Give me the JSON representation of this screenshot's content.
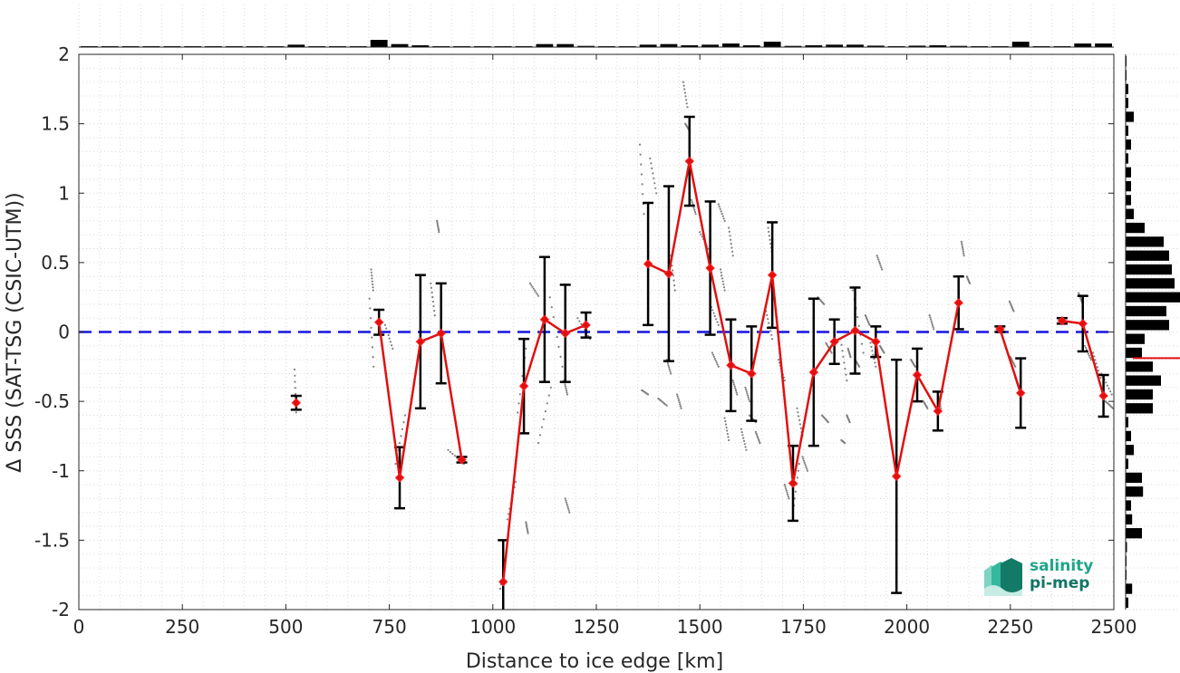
{
  "chart_data": {
    "type": "scatter",
    "xlabel": "Distance to ice edge [km]",
    "ylabel": "Δ SSS (SAT-TSG (CSIC-UTM))",
    "xlim": [
      0,
      2500
    ],
    "ylim": [
      -2,
      2
    ],
    "xticks": [
      "0",
      "250",
      "500",
      "750",
      "1000",
      "1250",
      "1500",
      "1750",
      "2000",
      "2250",
      "2500"
    ],
    "yticks": [
      "2",
      "1.5",
      "1",
      "0.5",
      "0",
      "-0.5",
      "-1",
      "-1.5",
      "-2"
    ],
    "grid": true,
    "reference_line": {
      "y": 0,
      "color": "#1515e0",
      "style": "dashed"
    },
    "series": [
      {
        "kind": "binned-mean-with-errorbars",
        "color": "#e01010",
        "points": [
          {
            "x": 525,
            "y": -0.51,
            "err": 0.05
          },
          {
            "x": 725,
            "y": 0.07,
            "err": 0.09
          },
          {
            "x": 775,
            "y": -1.05,
            "err": 0.22
          },
          {
            "x": 825,
            "y": -0.07,
            "err": 0.48
          },
          {
            "x": 875,
            "y": -0.01,
            "err": 0.36
          },
          {
            "x": 925,
            "y": -0.92,
            "err": 0.02
          },
          {
            "x": 1025,
            "y": -1.8,
            "err": 0.3
          },
          {
            "x": 1075,
            "y": -0.39,
            "err": 0.34
          },
          {
            "x": 1125,
            "y": 0.09,
            "err": 0.45
          },
          {
            "x": 1175,
            "y": -0.01,
            "err": 0.35
          },
          {
            "x": 1225,
            "y": 0.05,
            "err": 0.09
          },
          {
            "x": 1375,
            "y": 0.49,
            "err": 0.44
          },
          {
            "x": 1425,
            "y": 0.42,
            "err": 0.63
          },
          {
            "x": 1475,
            "y": 1.23,
            "err": 0.32
          },
          {
            "x": 1525,
            "y": 0.46,
            "err": 0.48
          },
          {
            "x": 1575,
            "y": -0.24,
            "err": 0.33
          },
          {
            "x": 1625,
            "y": -0.3,
            "err": 0.34
          },
          {
            "x": 1675,
            "y": 0.41,
            "err": 0.38
          },
          {
            "x": 1725,
            "y": -1.09,
            "err": 0.27
          },
          {
            "x": 1775,
            "y": -0.29,
            "err": 0.53
          },
          {
            "x": 1825,
            "y": -0.07,
            "err": 0.16
          },
          {
            "x": 1875,
            "y": 0.01,
            "err": 0.31
          },
          {
            "x": 1925,
            "y": -0.07,
            "err": 0.11
          },
          {
            "x": 1975,
            "y": -1.04,
            "err": 0.84
          },
          {
            "x": 2025,
            "y": -0.31,
            "err": 0.19
          },
          {
            "x": 2075,
            "y": -0.57,
            "err": 0.14
          },
          {
            "x": 2125,
            "y": 0.21,
            "err": 0.19
          },
          {
            "x": 2225,
            "y": 0.02,
            "err": 0.02
          },
          {
            "x": 2275,
            "y": -0.44,
            "err": 0.25
          },
          {
            "x": 2375,
            "y": 0.08,
            "err": 0.02
          },
          {
            "x": 2425,
            "y": 0.06,
            "err": 0.2
          },
          {
            "x": 2475,
            "y": -0.46,
            "err": 0.15
          }
        ],
        "connected_segments": [
          [
            1,
            5
          ],
          [
            6,
            10
          ],
          [
            11,
            26
          ],
          [
            27,
            28
          ],
          [
            29,
            31
          ]
        ]
      },
      {
        "kind": "raw-points",
        "color": "#7f7f7f",
        "tracks": [
          {
            "x": [
              521,
              525
            ],
            "y": [
              -0.27,
              -0.58
            ]
          },
          {
            "x": [
              702,
              712
            ],
            "y": [
              0.24,
              -0.25
            ]
          },
          {
            "x": [
              706,
              711
            ],
            "y": [
              0.45,
              0.3
            ]
          },
          {
            "x": [
              740,
              758
            ],
            "y": [
              0.05,
              -0.12
            ]
          },
          {
            "x": [
              765,
              788
            ],
            "y": [
              -0.95,
              -0.6
            ]
          },
          {
            "x": [
              850,
              860
            ],
            "y": [
              0.35,
              0.12
            ]
          },
          {
            "x": [
              865,
              870
            ],
            "y": [
              0.8,
              0.72
            ]
          },
          {
            "x": [
              892,
              930
            ],
            "y": [
              -0.85,
              -0.95
            ]
          },
          {
            "x": [
              1018,
              1032
            ],
            "y": [
              -1.85,
              -1.62
            ]
          },
          {
            "x": [
              1035,
              1055
            ],
            "y": [
              -1.35,
              -1.08
            ]
          },
          {
            "x": [
              1060,
              1080
            ],
            "y": [
              -0.58,
              -0.12
            ]
          },
          {
            "x": [
              1080,
              1085
            ],
            "y": [
              -1.37,
              -1.45
            ]
          },
          {
            "x": [
              1110,
              1140
            ],
            "y": [
              -0.8,
              -0.4
            ]
          },
          {
            "x": [
              1090,
              1110
            ],
            "y": [
              0.35,
              0.26
            ]
          },
          {
            "x": [
              1138,
              1168
            ],
            "y": [
              0.25,
              -0.25
            ]
          },
          {
            "x": [
              1172,
              1180
            ],
            "y": [
              -0.35,
              -0.45
            ]
          },
          {
            "x": [
              1175,
              1185
            ],
            "y": [
              -1.2,
              -1.3
            ]
          },
          {
            "x": [
              1205,
              1235
            ],
            "y": [
              0.1,
              -0.05
            ]
          },
          {
            "x": [
              1355,
              1365
            ],
            "y": [
              1.35,
              0.85
            ]
          },
          {
            "x": [
              1380,
              1395
            ],
            "y": [
              1.25,
              1.0
            ]
          },
          {
            "x": [
              1360,
              1375
            ],
            "y": [
              -0.42,
              -0.45
            ]
          },
          {
            "x": [
              1400,
              1420
            ],
            "y": [
              -0.48,
              -0.53
            ]
          },
          {
            "x": [
              1420,
              1430
            ],
            "y": [
              -0.2,
              -0.3
            ]
          },
          {
            "x": [
              1430,
              1440
            ],
            "y": [
              0.55,
              0.3
            ]
          },
          {
            "x": [
              1445,
              1455
            ],
            "y": [
              -0.45,
              -0.55
            ]
          },
          {
            "x": [
              1460,
              1470
            ],
            "y": [
              1.8,
              1.62
            ]
          },
          {
            "x": [
              1465,
              1475
            ],
            "y": [
              1.5,
              1.45
            ]
          },
          {
            "x": [
              1480,
              1490
            ],
            "y": [
              0.95,
              0.85
            ]
          },
          {
            "x": [
              1500,
              1520
            ],
            "y": [
              0.72,
              0.6
            ]
          },
          {
            "x": [
              1525,
              1545
            ],
            "y": [
              0.2,
              0.05
            ]
          },
          {
            "x": [
              1530,
              1545
            ],
            "y": [
              -0.15,
              -0.25
            ]
          },
          {
            "x": [
              1545,
              1560
            ],
            "y": [
              0.92,
              0.8
            ]
          },
          {
            "x": [
              1550,
              1560
            ],
            "y": [
              0.45,
              0.3
            ]
          },
          {
            "x": [
              1560,
              1570
            ],
            "y": [
              -0.62,
              -0.78
            ]
          },
          {
            "x": [
              1570,
              1580
            ],
            "y": [
              0.75,
              0.55
            ]
          },
          {
            "x": [
              1580,
              1590
            ],
            "y": [
              -0.35,
              -0.45
            ]
          },
          {
            "x": [
              1600,
              1612
            ],
            "y": [
              -0.7,
              -0.85
            ]
          },
          {
            "x": [
              1610,
              1620
            ],
            "y": [
              -0.4,
              -0.5
            ]
          },
          {
            "x": [
              1620,
              1635
            ],
            "y": [
              -0.6,
              -0.65
            ]
          },
          {
            "x": [
              1635,
              1645
            ],
            "y": [
              -0.72,
              -0.8
            ]
          },
          {
            "x": [
              1660,
              1675
            ],
            "y": [
              0.15,
              -0.05
            ]
          },
          {
            "x": [
              1665,
              1675
            ],
            "y": [
              0.75,
              0.55
            ]
          },
          {
            "x": [
              1690,
              1705
            ],
            "y": [
              -0.2,
              -0.35
            ]
          },
          {
            "x": [
              1705,
              1715
            ],
            "y": [
              -1.1,
              -1.2
            ]
          },
          {
            "x": [
              1725,
              1740
            ],
            "y": [
              -1.3,
              -0.95
            ]
          },
          {
            "x": [
              1735,
              1748
            ],
            "y": [
              -0.55,
              -0.75
            ]
          },
          {
            "x": [
              1748,
              1760
            ],
            "y": [
              -0.9,
              -1.0
            ]
          },
          {
            "x": [
              1785,
              1800
            ],
            "y": [
              0.25,
              0.2
            ]
          },
          {
            "x": [
              1795,
              1810
            ],
            "y": [
              -0.6,
              -0.65
            ]
          },
          {
            "x": [
              1805,
              1818
            ],
            "y": [
              -0.08,
              -0.15
            ]
          },
          {
            "x": [
              1840,
              1855
            ],
            "y": [
              -0.05,
              -0.35
            ]
          },
          {
            "x": [
              1842,
              1850
            ],
            "y": [
              -0.78,
              -0.8
            ]
          },
          {
            "x": [
              1855,
              1862
            ],
            "y": [
              -0.6,
              -0.65
            ]
          },
          {
            "x": [
              1858,
              1864
            ],
            "y": [
              -0.12,
              -0.18
            ]
          },
          {
            "x": [
              1870,
              1895
            ],
            "y": [
              0.3,
              -0.15
            ]
          },
          {
            "x": [
              1875,
              1885
            ],
            "y": [
              -0.2,
              -0.25
            ]
          },
          {
            "x": [
              1900,
              1910
            ],
            "y": [
              0.12,
              0.05
            ]
          },
          {
            "x": [
              1910,
              1925
            ],
            "y": [
              -0.05,
              -0.25
            ]
          },
          {
            "x": [
              1928,
              1940
            ],
            "y": [
              0.55,
              0.45
            ]
          },
          {
            "x": [
              1935,
              1945
            ],
            "y": [
              -0.1,
              -0.15
            ]
          },
          {
            "x": [
              2010,
              2020
            ],
            "y": [
              -0.2,
              -0.25
            ]
          },
          {
            "x": [
              2040,
              2050
            ],
            "y": [
              -0.5,
              -0.55
            ]
          },
          {
            "x": [
              2055,
              2065
            ],
            "y": [
              0.12,
              0.02
            ]
          },
          {
            "x": [
              2075,
              2082
            ],
            "y": [
              -0.45,
              -0.55
            ]
          },
          {
            "x": [
              2132,
              2138
            ],
            "y": [
              0.65,
              0.55
            ]
          },
          {
            "x": [
              2145,
              2152
            ],
            "y": [
              0.4,
              0.35
            ]
          },
          {
            "x": [
              2248,
              2258
            ],
            "y": [
              0.22,
              0.15
            ]
          },
          {
            "x": [
              2250,
              2262
            ],
            "y": [
              -0.18,
              -0.25
            ]
          },
          {
            "x": [
              2262,
              2272
            ],
            "y": [
              -0.33,
              -0.42
            ]
          },
          {
            "x": [
              2415,
              2425
            ],
            "y": [
              0.28,
              0.2
            ]
          },
          {
            "x": [
              2430,
              2445
            ],
            "y": [
              -0.1,
              -0.2
            ]
          },
          {
            "x": [
              2450,
              2468
            ],
            "y": [
              -0.15,
              -0.33
            ]
          },
          {
            "x": [
              2470,
              2495
            ],
            "y": [
              -0.3,
              -0.45
            ]
          },
          {
            "x": [
              2480,
              2498
            ],
            "y": [
              -0.5,
              -0.55
            ]
          }
        ]
      }
    ],
    "top_histogram": {
      "bin_edges": [
        0,
        50,
        100,
        150,
        200,
        250,
        300,
        350,
        400,
        450,
        500,
        550,
        600,
        650,
        700,
        750,
        800,
        850,
        900,
        950,
        1000,
        1050,
        1100,
        1150,
        1200,
        1250,
        1300,
        1350,
        1400,
        1450,
        1500,
        1550,
        1600,
        1650,
        1700,
        1750,
        1800,
        1850,
        1900,
        1950,
        2000,
        2050,
        2100,
        2150,
        2200,
        2250,
        2300,
        2350,
        2400,
        2450,
        2500
      ],
      "counts": [
        0,
        0,
        0,
        0,
        0,
        0,
        0,
        0,
        0,
        0,
        0.2,
        0,
        0,
        0,
        0.6,
        0.25,
        0.15,
        0,
        0,
        0,
        0.05,
        0.08,
        0.25,
        0.25,
        0.1,
        0,
        0,
        0.2,
        0.25,
        0.15,
        0.2,
        0.3,
        0.15,
        0.45,
        0.1,
        0.15,
        0.2,
        0.2,
        0.12,
        0.08,
        0.12,
        0.15,
        0.1,
        0.05,
        0,
        0.45,
        0,
        0.05,
        0.3,
        0.3
      ]
    },
    "right_histogram": {
      "bin_edges": [
        -2,
        -1.9,
        -1.8,
        -1.7,
        -1.6,
        -1.5,
        -1.4,
        -1.3,
        -1.2,
        -1.1,
        -1,
        -0.9,
        -0.8,
        -0.7,
        -0.6,
        -0.5,
        -0.4,
        -0.3,
        -0.2,
        -0.1,
        0,
        0.1,
        0.2,
        0.3,
        0.4,
        0.5,
        0.6,
        0.7,
        0.8,
        0.9,
        1,
        1.1,
        1.2,
        1.3,
        1.4,
        1.5,
        1.6,
        1.7,
        1.8,
        1.9,
        2
      ],
      "counts": [
        0.05,
        0.12,
        0,
        0,
        0.02,
        0.3,
        0.12,
        0.1,
        0.32,
        0.3,
        0.05,
        0.15,
        0.1,
        0.05,
        0.5,
        0.5,
        0.65,
        0.5,
        0.3,
        0.35,
        0.8,
        0.75,
        1.0,
        0.9,
        0.85,
        0.8,
        0.7,
        0.35,
        0.15,
        0.1,
        0.1,
        0.1,
        0.05,
        0.1,
        0.05,
        0.15,
        0.05,
        0.05,
        0,
        0
      ]
    }
  },
  "logo": {
    "line1": "salinity",
    "line2": "pi-mep"
  }
}
